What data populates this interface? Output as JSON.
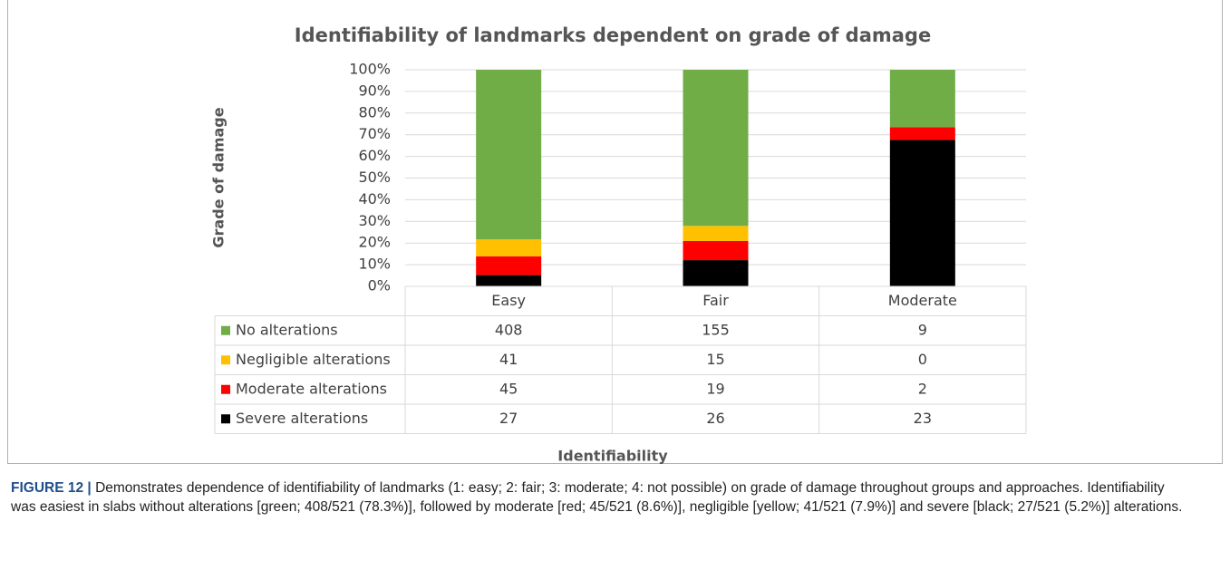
{
  "chart_data": {
    "type": "stacked_percent_bar",
    "title": "Identifiability of landmarks dependent on grade of damage",
    "x_label": "Identifiability",
    "y_label": "Grade of damage",
    "categories": [
      "Easy",
      "Fair",
      "Moderate"
    ],
    "series": [
      {
        "name": "No alterations",
        "color": "#70ad47",
        "values": [
          408,
          155,
          9
        ]
      },
      {
        "name": "Negligible alterations",
        "color": "#ffc000",
        "values": [
          41,
          15,
          0
        ]
      },
      {
        "name": "Moderate alterations",
        "color": "#ff0000",
        "values": [
          45,
          19,
          2
        ]
      },
      {
        "name": "Severe alterations",
        "color": "#000000",
        "values": [
          27,
          26,
          23
        ]
      }
    ],
    "ylim": [
      0,
      100
    ],
    "yticks": [
      {
        "value": 0,
        "label": "0%"
      },
      {
        "value": 10,
        "label": "10%"
      },
      {
        "value": 20,
        "label": "20%"
      },
      {
        "value": 30,
        "label": "30%"
      },
      {
        "value": 40,
        "label": "40%"
      },
      {
        "value": 50,
        "label": "50%"
      },
      {
        "value": 60,
        "label": "60%"
      },
      {
        "value": 70,
        "label": "70%"
      },
      {
        "value": 80,
        "label": "80%"
      },
      {
        "value": 90,
        "label": "90%"
      },
      {
        "value": 100,
        "label": "100%"
      }
    ],
    "grid": true
  },
  "caption": {
    "label": "FIGURE 12 |",
    "text": "Demonstrates dependence of identifiability of landmarks (1: easy; 2: fair; 3: moderate; 4: not possible) on grade of damage throughout groups and approaches. Identifiability was easiest in slabs without alterations [green; 408/521 (78.3%)], followed by moderate [red; 45/521 (8.6%)], negligible [yellow; 41/521 (7.9%)] and severe [black; 27/521 (5.2%)] alterations."
  }
}
